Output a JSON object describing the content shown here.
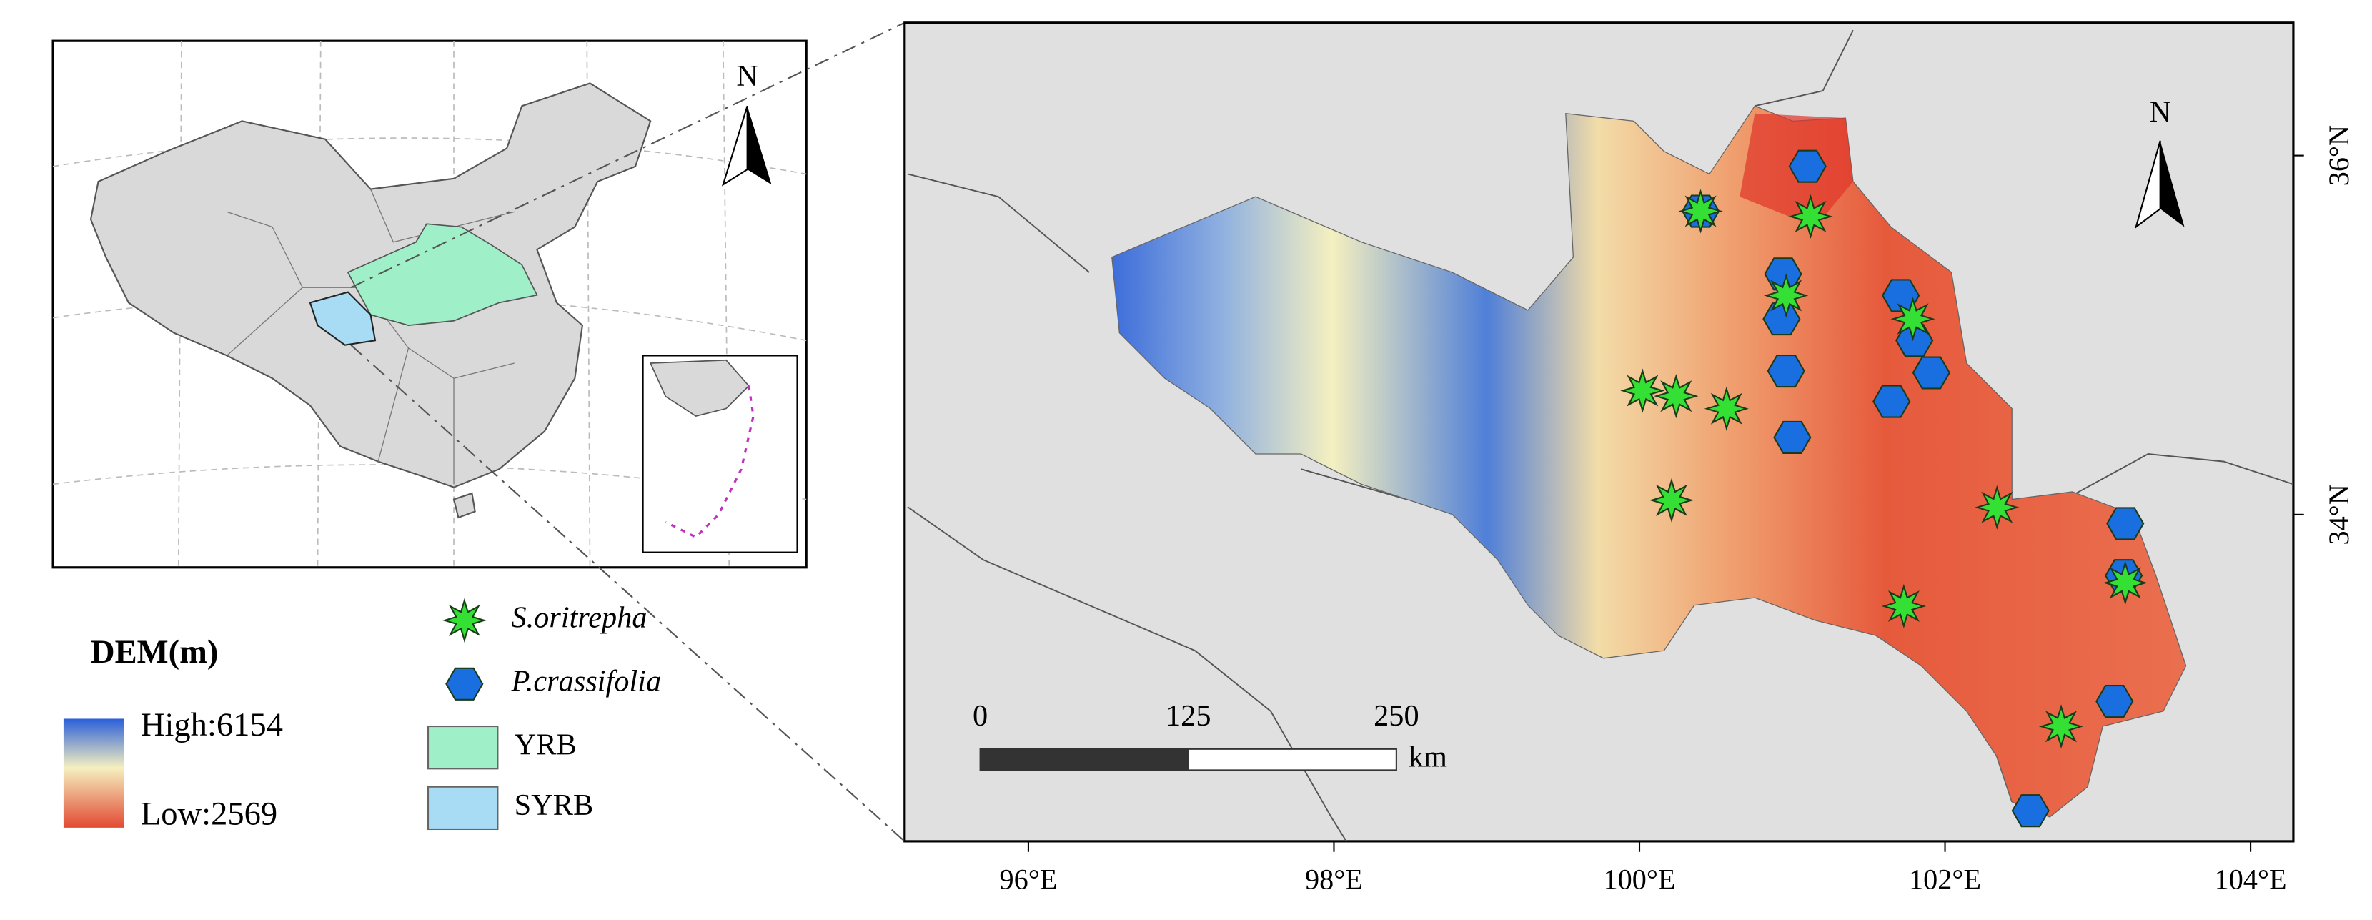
{
  "overview": {
    "north": "N"
  },
  "map": {
    "north": "N",
    "lonlim": [
      95.19,
      104.28
    ],
    "latlim": [
      32.18,
      36.74
    ],
    "lonticks": [
      {
        "value": 96,
        "label": "96°E"
      },
      {
        "value": 98,
        "label": "98°E"
      },
      {
        "value": 100,
        "label": "100°E"
      },
      {
        "value": 102,
        "label": "102°E"
      },
      {
        "value": 104,
        "label": "104°E"
      }
    ],
    "latticks": [
      {
        "value": 36,
        "label": "36°N"
      },
      {
        "value": 34,
        "label": "34°N"
      }
    ],
    "scale_bar": {
      "ticks": [
        0,
        125,
        250
      ],
      "unit": "km"
    },
    "species": [
      {
        "name": "S.oritrepha",
        "color": "#33e033",
        "lon": [
          100.4,
          101.12,
          100.96,
          101.79,
          100.02,
          100.24,
          100.57,
          100.21,
          102.34,
          103.18,
          101.73,
          102.76
        ],
        "lat": [
          35.69,
          35.66,
          35.22,
          35.09,
          34.69,
          34.66,
          34.59,
          34.08,
          34.04,
          33.62,
          33.49,
          32.82
        ]
      },
      {
        "name": "P.crassifolia",
        "color": "#1a6fe0",
        "lon": [
          101.1,
          100.4,
          100.94,
          100.93,
          101.71,
          101.8,
          100.96,
          101.91,
          101.65,
          101.0,
          103.18,
          103.17,
          103.11,
          102.56
        ],
        "lat": [
          35.94,
          35.69,
          35.34,
          35.09,
          35.22,
          34.97,
          34.8,
          34.79,
          34.63,
          34.43,
          33.95,
          33.66,
          32.96,
          32.35
        ]
      }
    ]
  },
  "legend": {
    "title": "DEM(m)",
    "high": "High:6154",
    "low": "Low:2569",
    "regions": [
      {
        "name": "YRB",
        "color": "#9ff0c8"
      },
      {
        "name": "SYRB",
        "color": "#a8dcf5"
      }
    ]
  }
}
